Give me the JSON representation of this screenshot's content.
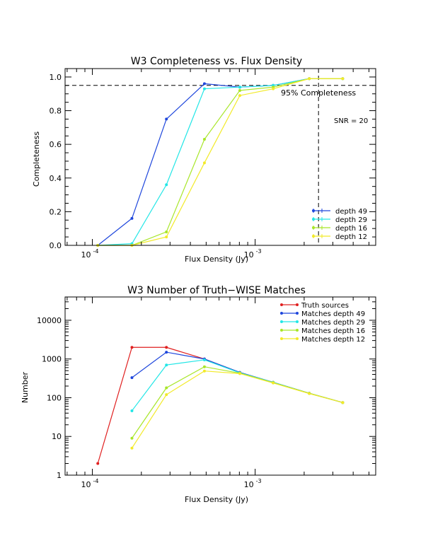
{
  "chart_data": [
    {
      "type": "line",
      "title": "W3 Completeness vs. Flux Density",
      "xlabel": "Flux Density (Jy)",
      "ylabel": "Completeness",
      "xscale": "log",
      "xlim": [
        6.8e-05,
        0.0055
      ],
      "ylim": [
        0,
        1.05
      ],
      "yticks": [
        0.0,
        0.2,
        0.4,
        0.6,
        0.8,
        1.0
      ],
      "ytick_labels": [
        "0.0",
        "0.2",
        "0.4",
        "0.6",
        "0.8",
        "1.0"
      ],
      "xtick_labels": {
        "major1_base": "10",
        "major1_exp": "-4",
        "major2_base": "10",
        "major2_exp": "-3"
      },
      "legend": "bottom-right",
      "series": [
        {
          "name": "depth 49",
          "color": "#1e46dc",
          "x": [
            0.000108,
            0.000175,
            0.000285,
            0.000488,
            0.000805,
            0.00129,
            0.00215,
            0.00345
          ],
          "y": [
            0.0,
            0.16,
            0.75,
            0.96,
            0.94,
            0.95,
            0.99,
            0.99
          ]
        },
        {
          "name": "depth 29",
          "color": "#22e6e6",
          "x": [
            0.000108,
            0.000175,
            0.000285,
            0.000488,
            0.000805,
            0.00129,
            0.00215,
            0.00345
          ],
          "y": [
            0.0,
            0.01,
            0.36,
            0.93,
            0.94,
            0.95,
            0.99,
            0.99
          ]
        },
        {
          "name": "depth 16",
          "color": "#a8e628",
          "x": [
            0.000108,
            0.000175,
            0.000285,
            0.000488,
            0.000805,
            0.00129,
            0.00215,
            0.00345
          ],
          "y": [
            0.0,
            0.0,
            0.08,
            0.63,
            0.92,
            0.94,
            0.99,
            0.99
          ]
        },
        {
          "name": "depth 12",
          "color": "#f2ea28",
          "x": [
            0.000108,
            0.000175,
            0.000285,
            0.000488,
            0.000805,
            0.00129,
            0.00215,
            0.00345
          ],
          "y": [
            0.0,
            0.0,
            0.05,
            0.49,
            0.89,
            0.93,
            0.99,
            0.99
          ]
        }
      ],
      "reference_lines": {
        "completeness_level": 0.95,
        "completeness_label": "95% Completeness",
        "snr_flux": 0.00245,
        "snr_label": "SNR = 20"
      }
    },
    {
      "type": "line",
      "title": "W3 Number of Truth−WISE Matches",
      "xlabel": "Flux Density (Jy)",
      "ylabel": "Number",
      "xscale": "log",
      "yscale": "log",
      "xlim": [
        6.8e-05,
        0.0055
      ],
      "ylim": [
        1,
        40000
      ],
      "yticks": [
        1,
        10,
        100,
        1000,
        10000
      ],
      "ytick_labels": [
        "1",
        "10",
        "100",
        "1000",
        "10000"
      ],
      "xtick_labels": {
        "major1_base": "10",
        "major1_exp": "-4",
        "major2_base": "10",
        "major2_exp": "-3"
      },
      "legend": "top-right",
      "series": [
        {
          "name": "Truth sources",
          "color": "#e02020",
          "x": [
            0.000108,
            0.000175,
            0.000285,
            0.000488,
            0.000805,
            0.00129,
            0.00215,
            0.00345
          ],
          "y": [
            2,
            2000,
            2000,
            1000,
            450,
            250,
            130,
            75
          ]
        },
        {
          "name": "Matches depth 49",
          "color": "#1e46dc",
          "x": [
            0.000175,
            0.000285,
            0.000488,
            0.000805,
            0.00129,
            0.00215,
            0.00345
          ],
          "y": [
            330,
            1500,
            1000,
            450,
            250,
            130,
            75
          ]
        },
        {
          "name": "Matches depth 29",
          "color": "#22e6e6",
          "x": [
            0.000175,
            0.000285,
            0.000488,
            0.000805,
            0.00129,
            0.00215,
            0.00345
          ],
          "y": [
            46,
            700,
            950,
            440,
            250,
            130,
            75
          ]
        },
        {
          "name": "Matches depth 16",
          "color": "#a8e628",
          "x": [
            0.000175,
            0.000285,
            0.000488,
            0.000805,
            0.00129,
            0.00215,
            0.00345
          ],
          "y": [
            9,
            180,
            630,
            430,
            245,
            130,
            75
          ]
        },
        {
          "name": "Matches depth 12",
          "color": "#f2ea28",
          "x": [
            0.000175,
            0.000285,
            0.000488,
            0.000805,
            0.00129,
            0.00215,
            0.00345
          ],
          "y": [
            5,
            120,
            490,
            420,
            240,
            128,
            75
          ]
        }
      ]
    }
  ]
}
